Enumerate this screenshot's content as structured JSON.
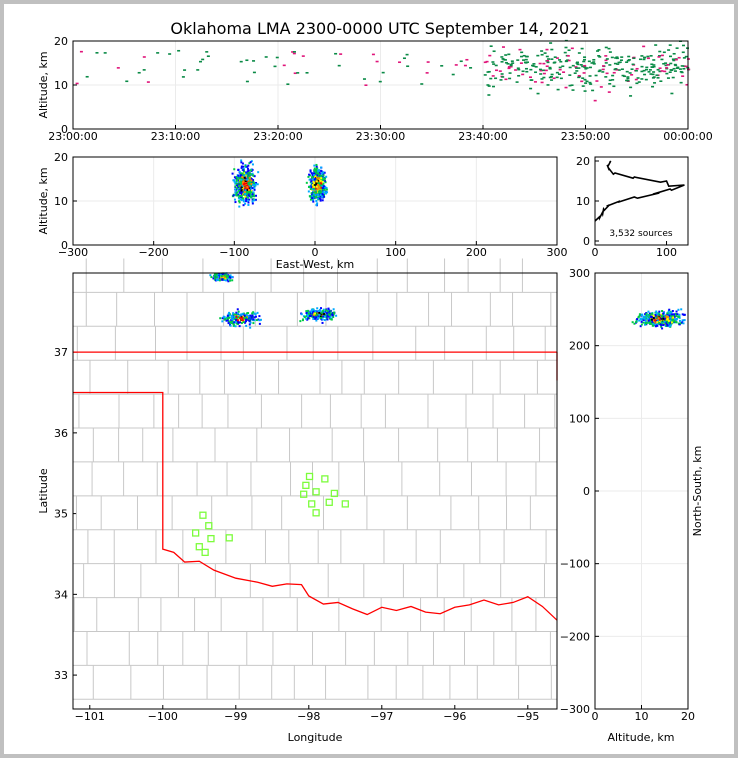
{
  "chart_data": [
    {
      "type": "scatter",
      "name": "altitude-time",
      "title": "Oklahoma LMA 2300-0000 UTC September 14, 2021",
      "ylabel": "Altitude, km",
      "ylim": [
        0,
        20
      ],
      "yticks": [
        "0",
        "10",
        "20"
      ],
      "xticks": [
        "23:00:00",
        "23:10:00",
        "23:20:00",
        "23:30:00",
        "23:40:00",
        "23:50:00",
        "00:00:00"
      ],
      "xlim_minutes": [
        0,
        60
      ],
      "colors": [
        "#0a8a46",
        "#e0157a"
      ],
      "density_note": "sparse before 23:35, dense 23:40-00:00 between 8 and 18 km",
      "sample_count": 420
    },
    {
      "type": "scatter",
      "name": "altitude-eastwest",
      "xlabel": "East-West, km",
      "ylabel": "Altitude, km",
      "xlim": [
        -300,
        300
      ],
      "ylim": [
        0,
        20
      ],
      "xticks": [
        "−300",
        "−200",
        "−100",
        "0",
        "100",
        "200",
        "300"
      ],
      "yticks": [
        "0",
        "10",
        "20"
      ],
      "clusters": [
        {
          "x": -88,
          "xspread": 12,
          "z": 14,
          "zspread": 4
        },
        {
          "x": 2,
          "xspread": 10,
          "z": 14,
          "zspread": 3.5
        }
      ]
    },
    {
      "type": "line",
      "name": "altitude-histogram",
      "xlim": [
        0,
        130
      ],
      "ylim": [
        -1,
        21
      ],
      "xticks": [
        "0",
        "100"
      ],
      "yticks": [
        "0",
        "10",
        "20"
      ],
      "annotation": "3,532 sources",
      "profile": [
        [
          5,
          0
        ],
        [
          6,
          6
        ],
        [
          7,
          10
        ],
        [
          8,
          12
        ],
        [
          9,
          20
        ],
        [
          10,
          35
        ],
        [
          11,
          55
        ],
        [
          12,
          90
        ],
        [
          13,
          105
        ],
        [
          14,
          125
        ],
        [
          15,
          100
        ],
        [
          16,
          55
        ],
        [
          17,
          28
        ],
        [
          18,
          20
        ],
        [
          19,
          17
        ],
        [
          20,
          22
        ]
      ]
    },
    {
      "type": "scatter",
      "name": "plan-view-map",
      "xlabel": "Longitude",
      "ylabel": "Latitude",
      "xlim": [
        -101.23,
        -94.6
      ],
      "ylim": [
        32.58,
        37.98
      ],
      "xticks": [
        "−101",
        "−100",
        "−99",
        "−98",
        "−97",
        "−96",
        "−95"
      ],
      "yticks": [
        "33",
        "34",
        "35",
        "36",
        "37"
      ],
      "source_clusters": [
        {
          "lon": -98.94,
          "lat": 37.43,
          "spread": 0.12
        },
        {
          "lon": -97.87,
          "lat": 37.48,
          "spread": 0.1
        },
        {
          "lon": -99.19,
          "lat": 37.94,
          "spread": 0.06
        }
      ],
      "stations": [
        [
          -99.45,
          34.98
        ],
        [
          -99.37,
          34.85
        ],
        [
          -99.55,
          34.76
        ],
        [
          -99.34,
          34.69
        ],
        [
          -99.5,
          34.59
        ],
        [
          -99.42,
          34.52
        ],
        [
          -99.09,
          34.7
        ],
        [
          -97.99,
          35.46
        ],
        [
          -97.78,
          35.43
        ],
        [
          -98.04,
          35.35
        ],
        [
          -97.9,
          35.27
        ],
        [
          -97.65,
          35.25
        ],
        [
          -98.07,
          35.24
        ],
        [
          -97.96,
          35.12
        ],
        [
          -97.72,
          35.14
        ],
        [
          -97.5,
          35.12
        ],
        [
          -97.9,
          35.01
        ]
      ],
      "station_color": "#7cfc3c",
      "border_color": "#ff0000"
    },
    {
      "type": "scatter",
      "name": "northsouth-altitude",
      "xlabel": "Altitude, km",
      "ylabel": "North-South, km",
      "xlim": [
        0,
        20
      ],
      "ylim": [
        -300,
        300
      ],
      "xticks": [
        "0",
        "10",
        "20"
      ],
      "yticks": [
        "−300",
        "−200",
        "−100",
        "0",
        "100",
        "200",
        "300"
      ],
      "clusters": [
        {
          "ns": 238,
          "nsspread": 7,
          "z": 14,
          "zspread": 3.5
        }
      ]
    }
  ]
}
